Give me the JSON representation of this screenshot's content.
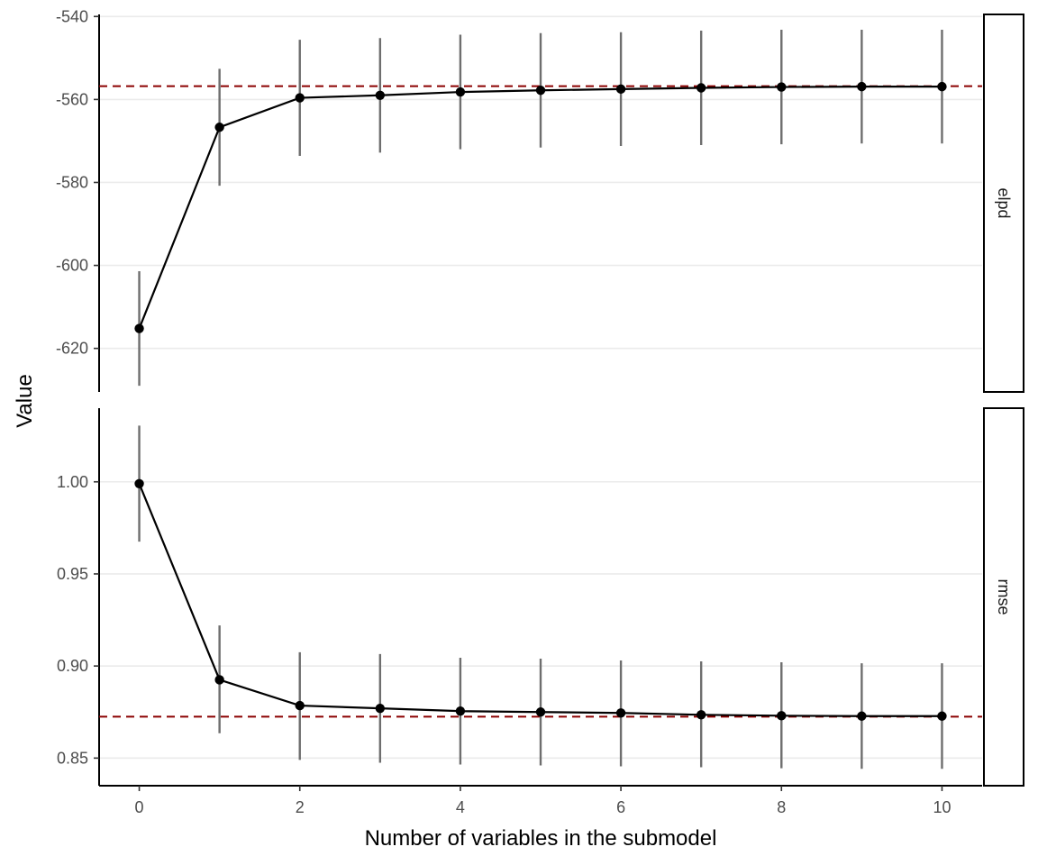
{
  "chart_data": {
    "type": "line",
    "xlabel": "Number of variables in the submodel",
    "ylabel": "Value",
    "x": [
      0,
      1,
      2,
      3,
      4,
      5,
      6,
      7,
      8,
      9,
      10
    ],
    "x_ticks": [
      "0",
      "2",
      "4",
      "6",
      "8",
      "10"
    ],
    "x_tick_values": [
      0,
      2,
      4,
      6,
      8,
      10
    ],
    "xlim": [
      -0.5,
      10.5
    ],
    "grid": "horizontal major lines",
    "colors": {
      "line": "#000000",
      "point": "#000000",
      "errorbar": "#6e6e6e",
      "reference": "#8b0000",
      "grid": "#ebebeb"
    },
    "panels": [
      {
        "strip": "elpd",
        "ylim": [
          -630.5,
          -539.5
        ],
        "y_ticks": [
          "-540",
          "-560",
          "-580",
          "-600",
          "-620"
        ],
        "y_tick_values": [
          -540,
          -560,
          -580,
          -600,
          -620
        ],
        "reference": -556.8,
        "values": [
          -615.2,
          -566.7,
          -559.6,
          -559.0,
          -558.2,
          -557.8,
          -557.5,
          -557.2,
          -557.0,
          -556.9,
          -556.9
        ],
        "lower": [
          -629.0,
          -580.8,
          -573.6,
          -572.8,
          -572.0,
          -571.6,
          -571.2,
          -571.0,
          -570.8,
          -570.6,
          -570.6
        ],
        "upper": [
          -601.4,
          -552.6,
          -545.6,
          -545.2,
          -544.4,
          -544.0,
          -543.8,
          -543.4,
          -543.2,
          -543.2,
          -543.2
        ]
      },
      {
        "strip": "rmse",
        "ylim": [
          0.835,
          1.04
        ],
        "y_ticks": [
          "1.00",
          "0.95",
          "0.90",
          "0.85"
        ],
        "y_tick_values": [
          1.0,
          0.95,
          0.9,
          0.85
        ],
        "reference": 0.8725,
        "values": [
          0.999,
          0.8925,
          0.8785,
          0.877,
          0.8755,
          0.875,
          0.8745,
          0.8735,
          0.873,
          0.8728,
          0.8728
        ],
        "lower": [
          0.9675,
          0.8635,
          0.849,
          0.8475,
          0.8465,
          0.846,
          0.8455,
          0.845,
          0.8445,
          0.8442,
          0.8442
        ],
        "upper": [
          1.0305,
          0.922,
          0.9075,
          0.9065,
          0.9045,
          0.904,
          0.903,
          0.9025,
          0.902,
          0.9015,
          0.9015
        ]
      }
    ]
  }
}
